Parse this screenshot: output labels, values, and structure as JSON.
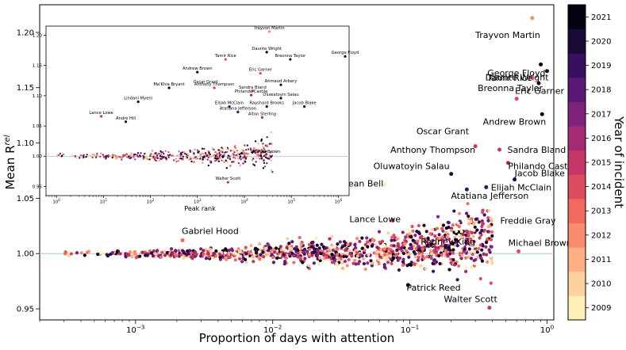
{
  "chart_data": [
    {
      "id": "main",
      "type": "scatter",
      "xscale": "log",
      "xlim": [
        0.0002,
        1.12
      ],
      "ylim": [
        0.94,
        1.225
      ],
      "xlabel": "Proportion of days with attention",
      "ylabel": "Mean R",
      "ylabel_superscript": "rel",
      "xticks": [
        {
          "value": 0.001,
          "base": "10",
          "exp": "−3"
        },
        {
          "value": 0.01,
          "base": "10",
          "exp": "−2"
        },
        {
          "value": 0.1,
          "base": "10",
          "exp": "−1"
        },
        {
          "value": 1,
          "base": "10",
          "exp": "0"
        }
      ],
      "yticks": [
        {
          "value": 0.95,
          "label": "0.95"
        },
        {
          "value": 1.0,
          "label": "1.00"
        },
        {
          "value": 1.05,
          "label": "1.05"
        },
        {
          "value": 1.1,
          "label": "1.10"
        },
        {
          "value": 1.15,
          "label": "1.15"
        },
        {
          "value": 1.2,
          "label": "1.20"
        }
      ],
      "reference_line": 1.0,
      "labeled_points": [
        {
          "name": "Trayvon Martin",
          "x": 0.78,
          "y": 1.213,
          "year": 2012,
          "anchor": "end",
          "dx": 10,
          "dy": 25
        },
        {
          "name": "Daunte Wright",
          "x": 0.9,
          "y": 1.171,
          "year": 2021,
          "anchor": "end",
          "dx": 10,
          "dy": 20
        },
        {
          "name": "George Floyd",
          "x": 1.0,
          "y": 1.165,
          "year": 2020,
          "anchor": "end",
          "dx": -2,
          "dy": 6
        },
        {
          "name": "Tamir Rice",
          "x": 0.78,
          "y": 1.159,
          "year": 2014,
          "anchor": "end",
          "dx": 0,
          "dy": 4
        },
        {
          "name": "Breonna Taylor",
          "x": 0.87,
          "y": 1.154,
          "year": 2020,
          "anchor": "end",
          "dx": 5,
          "dy": 10
        },
        {
          "name": "Eric Garner",
          "x": 0.6,
          "y": 1.14,
          "year": 2014,
          "anchor": "start",
          "dx": -2,
          "dy": -6
        },
        {
          "name": "Andrew Brown",
          "x": 0.92,
          "y": 1.126,
          "year": 2021,
          "anchor": "end",
          "dx": 5,
          "dy": 13
        },
        {
          "name": "Oscar Grant",
          "x": 0.3,
          "y": 1.098,
          "year": 2009,
          "anchor": "end",
          "dx": -8,
          "dy": -14
        },
        {
          "name": "Anthony Thompson",
          "x": 0.3,
          "y": 1.097,
          "year": 2015,
          "anchor": "end",
          "dx": 0,
          "dy": 8
        },
        {
          "name": "Sandra Bland",
          "x": 0.45,
          "y": 1.094,
          "year": 2015,
          "anchor": "start",
          "dx": 10,
          "dy": 4
        },
        {
          "name": "Philando Castile",
          "x": 0.52,
          "y": 1.082,
          "year": 2016,
          "anchor": "start",
          "dx": 0,
          "dy": 8
        },
        {
          "name": "Oluwatoyin Salau",
          "x": 0.2,
          "y": 1.072,
          "year": 2020,
          "anchor": "end",
          "dx": -2,
          "dy": -6
        },
        {
          "name": "Jacob Blake",
          "x": 0.58,
          "y": 1.067,
          "year": 2020,
          "anchor": "start",
          "dx": 0,
          "dy": -4
        },
        {
          "name": "Elijah McClain",
          "x": 0.36,
          "y": 1.06,
          "year": 2019,
          "anchor": "start",
          "dx": 6,
          "dy": 4
        },
        {
          "name": "Atatiana Jefferson",
          "x": 0.26,
          "y": 1.058,
          "year": 2019,
          "anchor": "start",
          "dx": -20,
          "dy": 12
        },
        {
          "name": "Sean Bell",
          "x": 0.065,
          "y": 1.062,
          "year": 2009,
          "anchor": "end",
          "dx": -1,
          "dy": 2
        },
        {
          "name": "Lance Lowe",
          "x": 0.075,
          "y": 1.03,
          "year": 2015,
          "anchor": "end",
          "dx": 10,
          "dy": 2
        },
        {
          "name": "Freddie Gray",
          "x": 0.34,
          "y": 1.027,
          "year": 2015,
          "anchor": "start",
          "dx": 22,
          "dy": 0
        },
        {
          "name": "Rodney King",
          "x": 0.3,
          "y": 1.008,
          "year": 2009,
          "anchor": "end",
          "dx": 0,
          "dy": 0
        },
        {
          "name": "Michael Brown",
          "x": 0.62,
          "y": 1.002,
          "year": 2014,
          "anchor": "start",
          "dx": -13,
          "dy": -7
        },
        {
          "name": "Gabriel Hood",
          "x": 0.0022,
          "y": 1.012,
          "year": 2013,
          "anchor": "start",
          "dx": -1,
          "dy": -8
        },
        {
          "name": "Patrick Reed",
          "x": 0.097,
          "y": 0.9715,
          "year": 2021,
          "anchor": "start",
          "dx": -2,
          "dy": 7
        },
        {
          "name": "Walter Scott",
          "x": 0.38,
          "y": 0.951,
          "year": 2015,
          "anchor": "end",
          "dx": 10,
          "dy": -7
        }
      ],
      "background_cloud": {
        "count": 1100,
        "x_range": [
          0.0003,
          0.4
        ],
        "y_center": 1.0,
        "year_range": [
          2009,
          2021
        ]
      }
    },
    {
      "id": "inset",
      "type": "scatter",
      "xscale": "log",
      "xlim": [
        0.6,
        1700000
      ],
      "ylim": [
        0.935,
        1.215
      ],
      "xlabel": "Peak rank",
      "xticks": [
        {
          "value": 1,
          "base": "10",
          "exp": "0"
        },
        {
          "value": 10,
          "base": "10",
          "exp": "1"
        },
        {
          "value": 100,
          "base": "10",
          "exp": "2"
        },
        {
          "value": 1000,
          "base": "10",
          "exp": "3"
        },
        {
          "value": 10000,
          "base": "10",
          "exp": "4"
        },
        {
          "value": 100000,
          "base": "10",
          "exp": "5"
        },
        {
          "value": 1000000,
          "base": "10",
          "exp": "6"
        }
      ],
      "yticks": [
        {
          "value": 0.95,
          "label": "0.95"
        },
        {
          "value": 1.0,
          "label": "1.00"
        },
        {
          "value": 1.05,
          "label": "1.05"
        },
        {
          "value": 1.1,
          "label": "1.10"
        },
        {
          "value": 1.15,
          "label": "1.15"
        },
        {
          "value": 1.2,
          "label": "1.20"
        }
      ],
      "reference_line": 1.0,
      "labeled_points": [
        {
          "name": "Trayvon Martin",
          "x": 34000,
          "y": 1.206,
          "year": 2012
        },
        {
          "name": "Daunte Wright",
          "x": 30000,
          "y": 1.172,
          "year": 2021
        },
        {
          "name": "Tamir Rice",
          "x": 4000,
          "y": 1.16,
          "year": 2014
        },
        {
          "name": "Breonna Taylor",
          "x": 95000,
          "y": 1.16,
          "year": 2020
        },
        {
          "name": "George Floyd",
          "x": 1400000,
          "y": 1.165,
          "year": 2020
        },
        {
          "name": "Andrew Brown",
          "x": 1000,
          "y": 1.139,
          "year": 2021
        },
        {
          "name": "Eric Garner",
          "x": 22000,
          "y": 1.137,
          "year": 2014
        },
        {
          "name": "Ahmaud Arbery",
          "x": 60000,
          "y": 1.118,
          "year": 2020
        },
        {
          "name": "Oscar Grant",
          "x": 1500,
          "y": 1.117,
          "year": 2009
        },
        {
          "name": "Ma'Khia Bryant",
          "x": 250,
          "y": 1.113,
          "year": 2021
        },
        {
          "name": "Anthony Thompson",
          "x": 2300,
          "y": 1.113,
          "year": 2015
        },
        {
          "name": "Sandra Bland",
          "x": 15000,
          "y": 1.108,
          "year": 2015
        },
        {
          "name": "Philando Castile",
          "x": 14000,
          "y": 1.101,
          "year": 2016
        },
        {
          "name": "Oluwatoyin Salau",
          "x": 60000,
          "y": 1.096,
          "year": 2020
        },
        {
          "name": "Lindani Myeni",
          "x": 55,
          "y": 1.09,
          "year": 2021
        },
        {
          "name": "Jacob Blake",
          "x": 190000,
          "y": 1.082,
          "year": 2020
        },
        {
          "name": "Elijah McClain",
          "x": 4800,
          "y": 1.082,
          "year": 2019
        },
        {
          "name": "Rayshard Brooks",
          "x": 30000,
          "y": 1.082,
          "year": 2020
        },
        {
          "name": "Atatiana Jefferson",
          "x": 7300,
          "y": 1.073,
          "year": 2019
        },
        {
          "name": "Alton Sterling",
          "x": 24000,
          "y": 1.064,
          "year": 2016
        },
        {
          "name": "Lance Lowe",
          "x": 9,
          "y": 1.066,
          "year": 2015
        },
        {
          "name": "Andre Hill",
          "x": 30,
          "y": 1.057,
          "year": 2020
        },
        {
          "name": "Michael Brown",
          "x": 28000,
          "y": 1.002,
          "year": 2014
        },
        {
          "name": "Walter Scott",
          "x": 4500,
          "y": 0.957,
          "year": 2015
        }
      ],
      "background_cloud": {
        "count": 500,
        "x_range": [
          1,
          40000
        ],
        "y_center": 1.0,
        "year_range": [
          2009,
          2021
        ]
      }
    }
  ],
  "colorbar": {
    "label": "Year of incident",
    "ticks": [
      "2009",
      "2010",
      "2011",
      "2012",
      "2013",
      "2014",
      "2015",
      "2016",
      "2017",
      "2018",
      "2019",
      "2020",
      "2021"
    ],
    "colors": [
      "#fcf0b7",
      "#fdd19d",
      "#fcb084",
      "#f98c6d",
      "#f26a5d",
      "#e04c5f",
      "#c63769",
      "#a42a75",
      "#80227b",
      "#5c1877",
      "#390f60",
      "#1b0a37",
      "#050312"
    ]
  }
}
